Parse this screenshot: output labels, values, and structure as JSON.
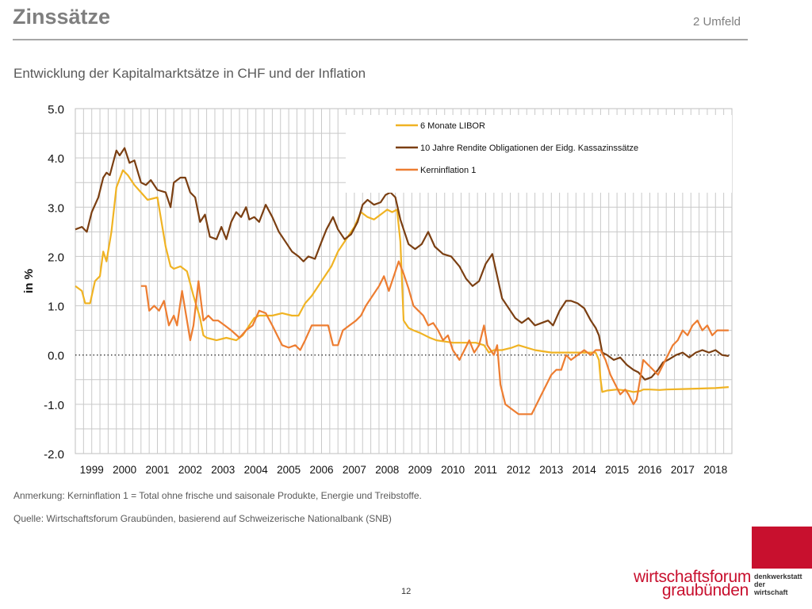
{
  "header": {
    "title": "Zinssätze",
    "section": "2 Umfeld"
  },
  "subtitle": "Entwicklung der Kapitalmarktsätze in CHF und der Inflation",
  "chart_data": {
    "type": "line",
    "ylabel": "in %",
    "xlabel": "",
    "ylim": [
      -2.0,
      5.0
    ],
    "xlim": [
      1999.0,
      2019.0
    ],
    "y_ticks": [
      "5.0",
      "4.0",
      "3.0",
      "2.0",
      "1.0",
      "0.0",
      "-1.0",
      "-2.0"
    ],
    "x_ticks": [
      "1999",
      "2000",
      "2001",
      "2002",
      "2003",
      "2004",
      "2005",
      "2006",
      "2007",
      "2008",
      "2009",
      "2010",
      "2011",
      "2012",
      "2013",
      "2014",
      "2015",
      "2016",
      "2017",
      "2018"
    ],
    "grid": true,
    "zero_line": "dotted",
    "legend_position": "top-right",
    "series": [
      {
        "name": "6 Monate LIBOR",
        "color": "#f0b323",
        "x": [
          1999.0,
          1999.2,
          1999.3,
          1999.45,
          1999.6,
          1999.75,
          1999.85,
          1999.95,
          2000.1,
          2000.25,
          2000.45,
          2000.6,
          2000.8,
          2001.0,
          2001.2,
          2001.5,
          2001.75,
          2001.9,
          2002.0,
          2002.2,
          2002.4,
          2002.6,
          2002.8,
          2002.9,
          2003.0,
          2003.3,
          2003.6,
          2003.9,
          2004.1,
          2004.3,
          2004.45,
          2004.6,
          2004.8,
          2005.0,
          2005.3,
          2005.6,
          2005.8,
          2006.0,
          2006.2,
          2006.5,
          2006.8,
          2007.0,
          2007.3,
          2007.5,
          2007.7,
          2007.9,
          2008.1,
          2008.3,
          2008.5,
          2008.65,
          2008.8,
          2008.9,
          2009.0,
          2009.15,
          2009.3,
          2009.5,
          2009.8,
          2010.0,
          2010.5,
          2010.9,
          2011.2,
          2011.45,
          2011.6,
          2011.75,
          2012.0,
          2012.3,
          2012.5,
          2013.0,
          2013.5,
          2014.0,
          2014.5,
          2014.85,
          2014.95,
          2015.0,
          2015.05,
          2015.2,
          2015.5,
          2015.8,
          2016.0,
          2016.2,
          2016.3,
          2016.5,
          2016.8,
          2017.0,
          2017.5,
          2018.0,
          2018.5,
          2018.9
        ],
        "values": [
          1.4,
          1.3,
          1.05,
          1.05,
          1.5,
          1.6,
          2.1,
          1.9,
          2.5,
          3.4,
          3.75,
          3.65,
          3.45,
          3.3,
          3.15,
          3.2,
          2.2,
          1.8,
          1.75,
          1.8,
          1.7,
          1.2,
          0.75,
          0.4,
          0.35,
          0.3,
          0.35,
          0.3,
          0.4,
          0.6,
          0.75,
          0.8,
          0.8,
          0.8,
          0.85,
          0.8,
          0.8,
          1.05,
          1.2,
          1.5,
          1.8,
          2.1,
          2.4,
          2.6,
          2.9,
          2.8,
          2.75,
          2.85,
          2.95,
          2.9,
          2.95,
          2.3,
          0.7,
          0.55,
          0.5,
          0.45,
          0.35,
          0.3,
          0.25,
          0.25,
          0.25,
          0.2,
          0.05,
          0.1,
          0.1,
          0.15,
          0.2,
          0.1,
          0.05,
          0.05,
          0.05,
          0.05,
          -0.1,
          -0.5,
          -0.75,
          -0.72,
          -0.7,
          -0.72,
          -0.75,
          -0.73,
          -0.7,
          -0.7,
          -0.71,
          -0.7,
          -0.69,
          -0.68,
          -0.67,
          -0.65
        ]
      },
      {
        "name": "10 Jahre Rendite Obligationen der Eidg. Kassazinssätze",
        "color": "#7b3f12",
        "x": [
          1999.0,
          1999.2,
          1999.35,
          1999.5,
          1999.7,
          1999.85,
          1999.95,
          2000.05,
          2000.15,
          2000.25,
          2000.35,
          2000.5,
          2000.65,
          2000.8,
          2001.0,
          2001.15,
          2001.3,
          2001.5,
          2001.75,
          2001.9,
          2002.0,
          2002.2,
          2002.35,
          2002.5,
          2002.65,
          2002.8,
          2002.95,
          2003.1,
          2003.3,
          2003.45,
          2003.6,
          2003.75,
          2003.9,
          2004.05,
          2004.2,
          2004.3,
          2004.45,
          2004.6,
          2004.8,
          2005.0,
          2005.2,
          2005.4,
          2005.6,
          2005.8,
          2005.95,
          2006.1,
          2006.3,
          2006.5,
          2006.65,
          2006.85,
          2007.0,
          2007.2,
          2007.4,
          2007.6,
          2007.75,
          2007.9,
          2008.1,
          2008.3,
          2008.45,
          2008.6,
          2008.75,
          2008.9,
          2009.0,
          2009.15,
          2009.35,
          2009.55,
          2009.75,
          2009.95,
          2010.2,
          2010.45,
          2010.7,
          2010.9,
          2011.1,
          2011.3,
          2011.5,
          2011.7,
          2011.85,
          2012.0,
          2012.2,
          2012.4,
          2012.6,
          2012.8,
          2013.0,
          2013.2,
          2013.4,
          2013.55,
          2013.75,
          2013.95,
          2014.1,
          2014.3,
          2014.5,
          2014.7,
          2014.85,
          2014.95,
          2015.05,
          2015.2,
          2015.4,
          2015.6,
          2015.8,
          2016.0,
          2016.15,
          2016.35,
          2016.55,
          2016.75,
          2016.9,
          2017.05,
          2017.3,
          2017.5,
          2017.7,
          2017.9,
          2018.1,
          2018.3,
          2018.5,
          2018.7,
          2018.9
        ],
        "values": [
          2.55,
          2.6,
          2.5,
          2.9,
          3.2,
          3.6,
          3.7,
          3.65,
          3.9,
          4.15,
          4.05,
          4.2,
          3.9,
          3.95,
          3.5,
          3.45,
          3.55,
          3.35,
          3.3,
          3.0,
          3.5,
          3.6,
          3.6,
          3.3,
          3.2,
          2.7,
          2.85,
          2.4,
          2.35,
          2.6,
          2.35,
          2.7,
          2.9,
          2.8,
          3.0,
          2.75,
          2.8,
          2.7,
          3.05,
          2.8,
          2.5,
          2.3,
          2.1,
          2.0,
          1.9,
          2.0,
          1.95,
          2.3,
          2.55,
          2.8,
          2.55,
          2.35,
          2.45,
          2.7,
          3.05,
          3.15,
          3.05,
          3.1,
          3.25,
          3.3,
          3.2,
          2.75,
          2.55,
          2.25,
          2.15,
          2.25,
          2.5,
          2.2,
          2.05,
          2.0,
          1.8,
          1.55,
          1.4,
          1.5,
          1.85,
          2.05,
          1.6,
          1.15,
          0.95,
          0.75,
          0.65,
          0.75,
          0.6,
          0.65,
          0.7,
          0.6,
          0.9,
          1.1,
          1.1,
          1.05,
          0.95,
          0.7,
          0.55,
          0.4,
          0.05,
          0.0,
          -0.1,
          -0.05,
          -0.2,
          -0.3,
          -0.35,
          -0.5,
          -0.45,
          -0.3,
          -0.15,
          -0.1,
          0.0,
          0.05,
          -0.05,
          0.05,
          0.1,
          0.05,
          0.1,
          0.0,
          -0.02
        ]
      },
      {
        "name": "Kerninflation 1",
        "color": "#ed7d31",
        "x": [
          2001.0,
          2001.15,
          2001.25,
          2001.4,
          2001.55,
          2001.7,
          2001.85,
          2002.0,
          2002.1,
          2002.25,
          2002.4,
          2002.5,
          2002.6,
          2002.75,
          2002.9,
          2003.05,
          2003.2,
          2003.35,
          2003.55,
          2003.75,
          2004.0,
          2004.2,
          2004.4,
          2004.6,
          2004.8,
          2005.0,
          2005.15,
          2005.3,
          2005.5,
          2005.7,
          2005.85,
          2006.0,
          2006.2,
          2006.4,
          2006.55,
          2006.7,
          2006.85,
          2007.0,
          2007.15,
          2007.35,
          2007.55,
          2007.7,
          2007.85,
          2008.05,
          2008.25,
          2008.4,
          2008.55,
          2008.7,
          2008.85,
          2009.0,
          2009.15,
          2009.3,
          2009.45,
          2009.6,
          2009.75,
          2009.9,
          2010.05,
          2010.2,
          2010.35,
          2010.5,
          2010.7,
          2010.85,
          2011.0,
          2011.15,
          2011.3,
          2011.45,
          2011.55,
          2011.65,
          2011.75,
          2011.85,
          2011.95,
          2012.1,
          2012.3,
          2012.5,
          2012.7,
          2012.9,
          2013.05,
          2013.2,
          2013.35,
          2013.5,
          2013.65,
          2013.8,
          2013.95,
          2014.1,
          2014.3,
          2014.5,
          2014.7,
          2014.85,
          2015.0,
          2015.15,
          2015.3,
          2015.45,
          2015.6,
          2015.75,
          2015.85,
          2016.0,
          2016.1,
          2016.2,
          2016.3,
          2016.45,
          2016.6,
          2016.75,
          2016.9,
          2017.05,
          2017.2,
          2017.35,
          2017.5,
          2017.65,
          2017.8,
          2017.95,
          2018.1,
          2018.25,
          2018.4,
          2018.55,
          2018.7,
          2018.9
        ],
        "values": [
          1.4,
          1.4,
          0.9,
          1.0,
          0.9,
          1.1,
          0.6,
          0.8,
          0.6,
          1.3,
          0.7,
          0.3,
          0.6,
          1.5,
          0.7,
          0.8,
          0.7,
          0.7,
          0.6,
          0.5,
          0.35,
          0.5,
          0.6,
          0.9,
          0.85,
          0.6,
          0.4,
          0.2,
          0.15,
          0.2,
          0.1,
          0.3,
          0.6,
          0.6,
          0.6,
          0.6,
          0.2,
          0.2,
          0.5,
          0.6,
          0.7,
          0.8,
          1.0,
          1.2,
          1.4,
          1.6,
          1.3,
          1.6,
          1.9,
          1.65,
          1.35,
          1.0,
          0.9,
          0.8,
          0.6,
          0.65,
          0.5,
          0.3,
          0.4,
          0.1,
          -0.1,
          0.1,
          0.3,
          0.05,
          0.2,
          0.6,
          0.2,
          0.1,
          0.0,
          0.2,
          -0.6,
          -1.0,
          -1.1,
          -1.2,
          -1.2,
          -1.2,
          -1.0,
          -0.8,
          -0.6,
          -0.4,
          -0.3,
          -0.3,
          0.0,
          -0.1,
          0.0,
          0.1,
          0.0,
          0.1,
          0.1,
          -0.1,
          -0.4,
          -0.6,
          -0.8,
          -0.7,
          -0.8,
          -1.0,
          -0.9,
          -0.5,
          -0.1,
          -0.2,
          -0.3,
          -0.4,
          -0.2,
          0.0,
          0.2,
          0.3,
          0.5,
          0.4,
          0.6,
          0.7,
          0.5,
          0.6,
          0.4,
          0.5,
          0.5,
          0.5
        ]
      }
    ]
  },
  "notes": {
    "remark": "Anmerkung:  Kerninflation 1 = Total ohne frische und saisonale Produkte, Energie und Treibstoffe.",
    "source": "Quelle:  Wirtschaftsforum Graubünden, basierend auf Schweizerische Nationalbank (SNB)"
  },
  "footer": {
    "page_number": "12",
    "logo_line1": "wirtschaftsforum",
    "logo_line2": "graubünden",
    "logo_sub1": "denkwerkstatt",
    "logo_sub2": "der",
    "logo_sub3": "wirtschaft",
    "logo_color": "#c8102e"
  }
}
